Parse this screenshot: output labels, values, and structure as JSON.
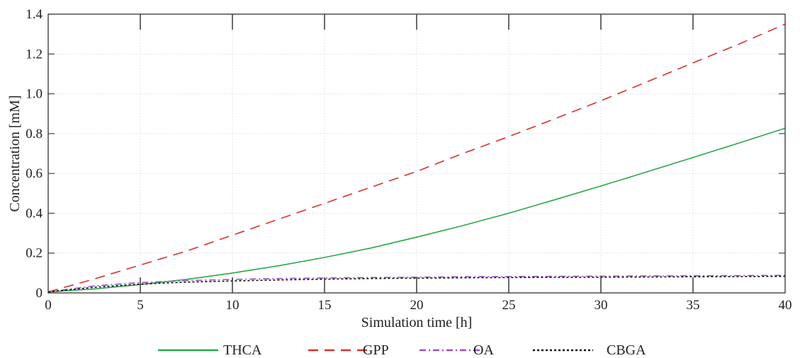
{
  "chart_data": {
    "type": "line",
    "xlabel": "Simulation time [h]",
    "ylabel": "Concentration [mM]",
    "xlim": [
      0,
      40
    ],
    "ylim": [
      0,
      1.4
    ],
    "xticks": [
      "0",
      "5",
      "10",
      "15",
      "20",
      "25",
      "30",
      "35",
      "40"
    ],
    "yticks": [
      "0",
      "0.2",
      "0.4",
      "0.6",
      "0.8",
      "1.0",
      "1.2",
      "1.4"
    ],
    "grid": true,
    "legend_position": "bottom",
    "x": [
      0,
      2.5,
      5,
      7.5,
      10,
      12.5,
      15,
      17.5,
      20,
      22.5,
      25,
      27.5,
      30,
      32.5,
      35,
      37.5,
      40
    ],
    "series": [
      {
        "name": "THCA",
        "color": "#2ca64b",
        "dash": "solid",
        "values": [
          0.005,
          0.02,
          0.042,
          0.068,
          0.1,
          0.136,
          0.178,
          0.225,
          0.28,
          0.338,
          0.4,
          0.468,
          0.537,
          0.608,
          0.68,
          0.753,
          0.827
        ]
      },
      {
        "name": "GPP",
        "color": "#d9302e",
        "dash": "dashed",
        "values": [
          0.005,
          0.07,
          0.14,
          0.21,
          0.29,
          0.37,
          0.45,
          0.53,
          0.61,
          0.7,
          0.785,
          0.875,
          0.965,
          1.06,
          1.155,
          1.25,
          1.35
        ]
      },
      {
        "name": "OA",
        "color": "#9a4fc0",
        "dash": "dashdot",
        "values": [
          0.005,
          0.035,
          0.052,
          0.062,
          0.068,
          0.072,
          0.075,
          0.077,
          0.079,
          0.081,
          0.082,
          0.083,
          0.084,
          0.085,
          0.086,
          0.087,
          0.088
        ]
      },
      {
        "name": "CBGA",
        "color": "#111111",
        "dash": "dotted",
        "values": [
          0.005,
          0.028,
          0.044,
          0.054,
          0.06,
          0.065,
          0.069,
          0.072,
          0.074,
          0.076,
          0.077,
          0.078,
          0.079,
          0.08,
          0.081,
          0.082,
          0.083
        ]
      }
    ]
  }
}
